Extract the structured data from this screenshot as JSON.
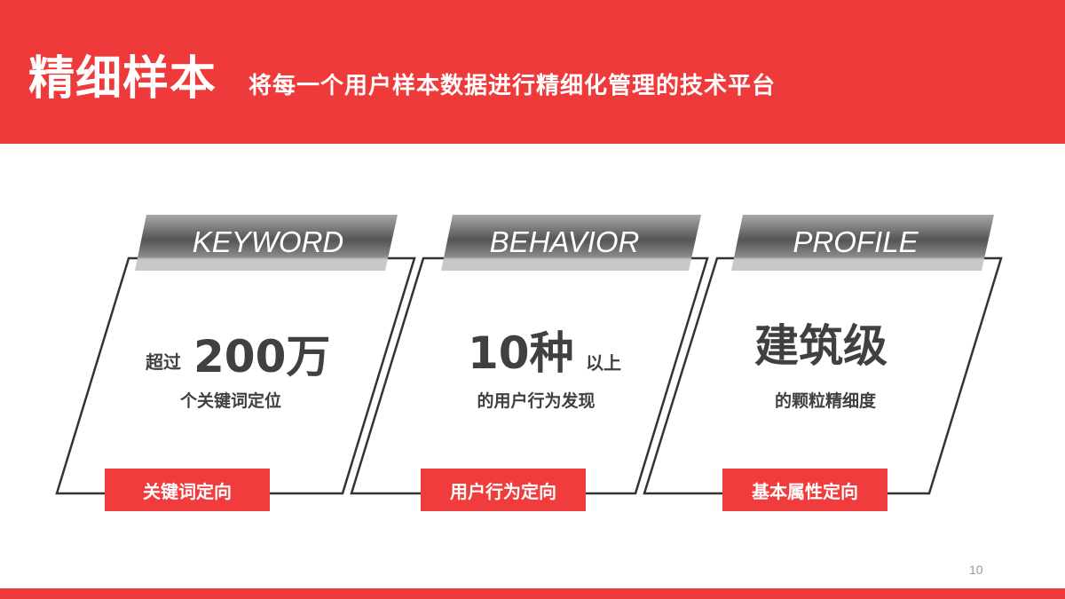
{
  "header": {
    "title": "精细样本",
    "subtitle": "将每一个用户样本数据进行精细化管理的技术平台"
  },
  "colors": {
    "accent": "#ee3a3a",
    "text": "#404040",
    "banner": "#6b6b6b"
  },
  "cards": [
    {
      "banner": "KEYWORD",
      "prefix": "超过",
      "value": "200万",
      "desc": "个关键词定位",
      "tag": "关键词定向"
    },
    {
      "banner": "BEHAVIOR",
      "value": "10种",
      "suffix": "以上",
      "desc": "的用户行为发现",
      "tag": "用户行为定向"
    },
    {
      "banner": "PROFILE",
      "value": "建筑级",
      "desc": "的颗粒精细度",
      "tag": "基本属性定向"
    }
  ],
  "page_number": "10"
}
